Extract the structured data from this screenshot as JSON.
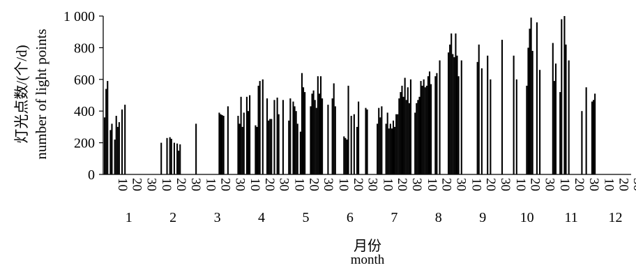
{
  "chart_data": {
    "type": "bar",
    "ylabel_cn": "灯光点数/(个/d)",
    "ylabel_en": "number of light points",
    "xlabel_cn": "月份",
    "xlabel_en": "month",
    "ylim": [
      0,
      1000
    ],
    "y_ticks": [
      0,
      200,
      400,
      600,
      800,
      1000
    ],
    "y_tick_labels": [
      "0",
      "200",
      "400",
      "600",
      "800",
      "1 000"
    ],
    "day_tick_labels": [
      "10",
      "20",
      "30"
    ],
    "months": [
      "1",
      "2",
      "3",
      "4",
      "5",
      "6",
      "7",
      "8",
      "9",
      "10",
      "11",
      "12"
    ],
    "grid": false,
    "legend": "none",
    "bar_color": "#000000",
    "x_unit": "day of year",
    "bars": [
      [
        1,
        360
      ],
      [
        2,
        540
      ],
      [
        3,
        590
      ],
      [
        5,
        280
      ],
      [
        6,
        320
      ],
      [
        8,
        220
      ],
      [
        9,
        370
      ],
      [
        10,
        300
      ],
      [
        11,
        330
      ],
      [
        13,
        410
      ],
      [
        15,
        440
      ],
      [
        40,
        200
      ],
      [
        44,
        230
      ],
      [
        46,
        235
      ],
      [
        47,
        225
      ],
      [
        49,
        200
      ],
      [
        51,
        195
      ],
      [
        52,
        150
      ],
      [
        53,
        190
      ],
      [
        64,
        320
      ],
      [
        80,
        390
      ],
      [
        81,
        380
      ],
      [
        82,
        375
      ],
      [
        83,
        370
      ],
      [
        86,
        430
      ],
      [
        93,
        370
      ],
      [
        94,
        320
      ],
      [
        95,
        490
      ],
      [
        96,
        300
      ],
      [
        97,
        390
      ],
      [
        99,
        490
      ],
      [
        100,
        400
      ],
      [
        101,
        500
      ],
      [
        105,
        310
      ],
      [
        106,
        300
      ],
      [
        107,
        560
      ],
      [
        108,
        590
      ],
      [
        110,
        600
      ],
      [
        113,
        480
      ],
      [
        114,
        340
      ],
      [
        115,
        350
      ],
      [
        116,
        350
      ],
      [
        118,
        470
      ],
      [
        120,
        485
      ],
      [
        121,
        380
      ],
      [
        124,
        470
      ],
      [
        128,
        340
      ],
      [
        129,
        480
      ],
      [
        131,
        460
      ],
      [
        132,
        430
      ],
      [
        133,
        400
      ],
      [
        134,
        320
      ],
      [
        136,
        270
      ],
      [
        137,
        640
      ],
      [
        138,
        550
      ],
      [
        139,
        520
      ],
      [
        143,
        430
      ],
      [
        144,
        510
      ],
      [
        145,
        530
      ],
      [
        146,
        470
      ],
      [
        147,
        420
      ],
      [
        148,
        620
      ],
      [
        149,
        510
      ],
      [
        150,
        620
      ],
      [
        151,
        480
      ],
      [
        155,
        440
      ],
      [
        158,
        480
      ],
      [
        159,
        575
      ],
      [
        160,
        430
      ],
      [
        166,
        240
      ],
      [
        167,
        230
      ],
      [
        168,
        220
      ],
      [
        169,
        560
      ],
      [
        171,
        370
      ],
      [
        173,
        380
      ],
      [
        175,
        300
      ],
      [
        176,
        460
      ],
      [
        181,
        420
      ],
      [
        182,
        410
      ],
      [
        189,
        320
      ],
      [
        190,
        420
      ],
      [
        191,
        360
      ],
      [
        192,
        430
      ],
      [
        195,
        320
      ],
      [
        196,
        390
      ],
      [
        197,
        290
      ],
      [
        198,
        320
      ],
      [
        199,
        290
      ],
      [
        200,
        340
      ],
      [
        201,
        300
      ],
      [
        202,
        380
      ],
      [
        203,
        380
      ],
      [
        204,
        480
      ],
      [
        205,
        520
      ],
      [
        206,
        560
      ],
      [
        207,
        490
      ],
      [
        208,
        610
      ],
      [
        209,
        470
      ],
      [
        210,
        550
      ],
      [
        211,
        450
      ],
      [
        212,
        600
      ],
      [
        215,
        390
      ],
      [
        216,
        450
      ],
      [
        217,
        470
      ],
      [
        218,
        490
      ],
      [
        219,
        590
      ],
      [
        220,
        560
      ],
      [
        221,
        600
      ],
      [
        222,
        550
      ],
      [
        223,
        560
      ],
      [
        224,
        620
      ],
      [
        225,
        650
      ],
      [
        226,
        570
      ],
      [
        229,
        620
      ],
      [
        230,
        640
      ],
      [
        232,
        720
      ],
      [
        238,
        770
      ],
      [
        239,
        820
      ],
      [
        240,
        890
      ],
      [
        241,
        760
      ],
      [
        242,
        740
      ],
      [
        243,
        890
      ],
      [
        244,
        750
      ],
      [
        245,
        620
      ],
      [
        247,
        720
      ],
      [
        258,
        710
      ],
      [
        259,
        820
      ],
      [
        261,
        670
      ],
      [
        265,
        750
      ],
      [
        267,
        600
      ],
      [
        275,
        850
      ],
      [
        283,
        750
      ],
      [
        285,
        600
      ],
      [
        292,
        560
      ],
      [
        293,
        800
      ],
      [
        294,
        920
      ],
      [
        295,
        990
      ],
      [
        296,
        780
      ],
      [
        299,
        960
      ],
      [
        301,
        660
      ],
      [
        310,
        830
      ],
      [
        311,
        590
      ],
      [
        312,
        700
      ],
      [
        315,
        520
      ],
      [
        316,
        980
      ],
      [
        318,
        1000
      ],
      [
        319,
        820
      ],
      [
        321,
        720
      ],
      [
        330,
        400
      ],
      [
        333,
        550
      ],
      [
        337,
        460
      ],
      [
        338,
        470
      ],
      [
        339,
        510
      ]
    ]
  }
}
